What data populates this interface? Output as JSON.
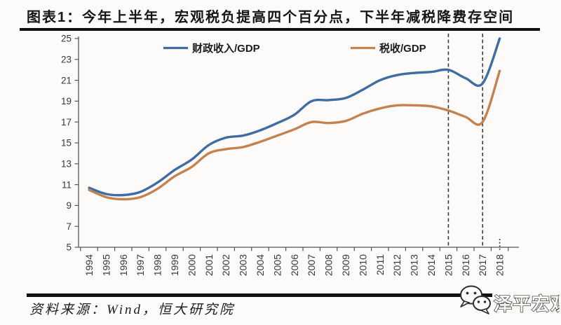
{
  "header": {
    "title": "图表1：今年上半年，宏观税负提高四个百分点，下半年减税降费存空间"
  },
  "chart_data": {
    "type": "line",
    "title": "图表1：今年上半年，宏观税负提高四个百分点，下半年减税降费存空间",
    "x": [
      1994,
      1995,
      1996,
      1997,
      1998,
      1999,
      2000,
      2001,
      2002,
      2003,
      2004,
      2005,
      2006,
      2007,
      2008,
      2009,
      2010,
      2011,
      2012,
      2013,
      2014,
      2015,
      2016,
      2017,
      2018
    ],
    "series": [
      {
        "name": "财政收入/GDP",
        "color": "#3e6da5",
        "values": [
          10.7,
          10.1,
          10.0,
          10.3,
          11.2,
          12.4,
          13.4,
          14.8,
          15.5,
          15.7,
          16.2,
          16.9,
          17.7,
          19.0,
          19.1,
          19.3,
          20.1,
          21.0,
          21.5,
          21.7,
          21.8,
          22.0,
          21.2,
          20.7,
          25.0
        ]
      },
      {
        "name": "税收/GDP",
        "color": "#c5824e",
        "values": [
          10.5,
          9.8,
          9.6,
          9.8,
          10.6,
          11.8,
          12.7,
          14.0,
          14.4,
          14.6,
          15.1,
          15.7,
          16.3,
          17.0,
          16.9,
          17.1,
          17.8,
          18.3,
          18.6,
          18.6,
          18.5,
          18.1,
          17.5,
          17.0,
          21.9
        ]
      }
    ],
    "xlabel": "",
    "ylabel": "",
    "ylim": [
      5,
      25
    ],
    "yticks": [
      5,
      7,
      9,
      11,
      13,
      15,
      17,
      19,
      21,
      23,
      25
    ],
    "grid": false,
    "legend_position": "top-inside",
    "annotations": {
      "dashed_vlines_years": [
        2015,
        2017
      ],
      "dotted_axis_mark_year": 2018
    }
  },
  "footer": {
    "source_label": "资料来源：Wind，恒大研究院",
    "logo_text": "泽平宏观",
    "logo_icon": "wechat-bubbles-icon"
  },
  "colors": {
    "fiscal_line": "#3e6da5",
    "tax_line": "#c5824e",
    "axis": "#555555",
    "tick_label": "#3a3a3a",
    "dashed_line": "#3c3c3c",
    "title_bar": "#101010"
  }
}
